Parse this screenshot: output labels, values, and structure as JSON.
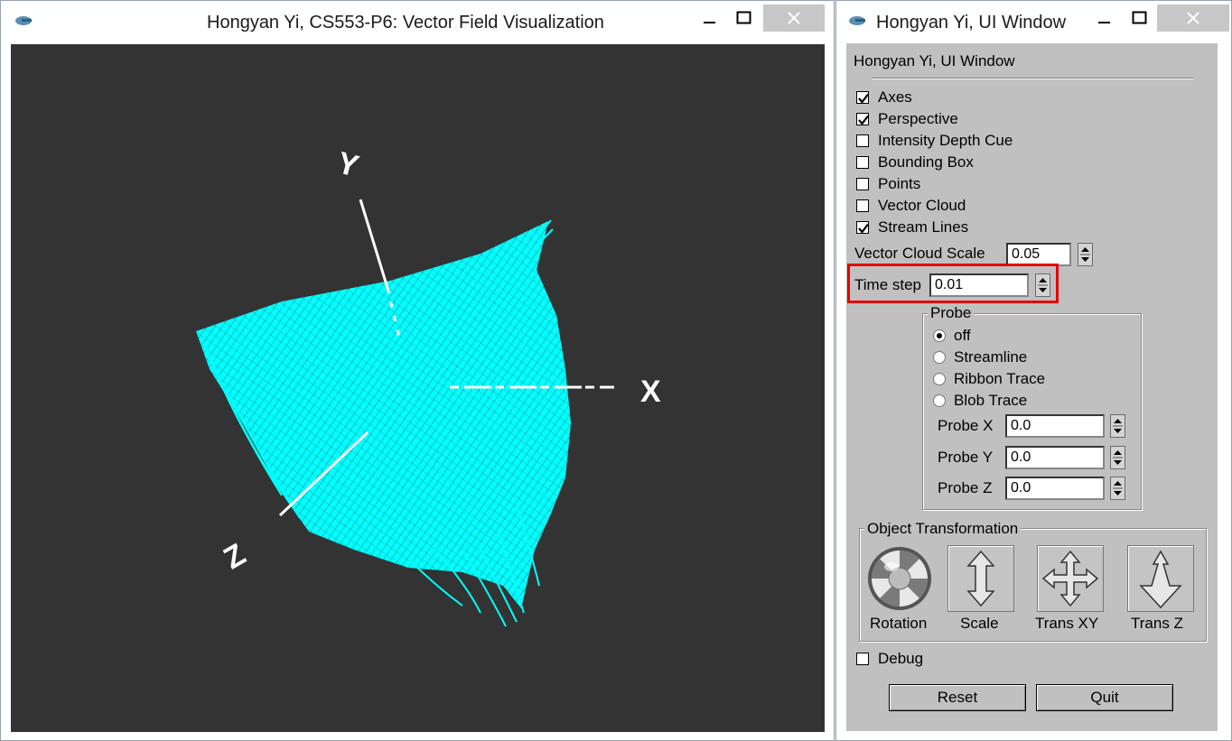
{
  "main_window": {
    "title": "Hongyan Yi, CS553-P6: Vector Field Visualization",
    "axes": {
      "x": "X",
      "y": "Y",
      "z": "Z"
    }
  },
  "ui_window": {
    "title": "Hongyan Yi, UI Window",
    "panel_heading": "Hongyan Yi, UI Window",
    "checkboxes": [
      {
        "label": "Axes",
        "checked": true
      },
      {
        "label": "Perspective",
        "checked": true
      },
      {
        "label": "Intensity Depth Cue",
        "checked": false
      },
      {
        "label": "Bounding Box",
        "checked": false
      },
      {
        "label": "Points",
        "checked": false
      },
      {
        "label": "Vector Cloud",
        "checked": false
      },
      {
        "label": "Stream Lines",
        "checked": true
      }
    ],
    "vector_cloud_scale": {
      "label": "Vector Cloud Scale",
      "value": "0.05"
    },
    "time_step": {
      "label": "Time step",
      "value": "0.01"
    },
    "probe": {
      "legend": "Probe",
      "options": [
        {
          "label": "off",
          "selected": true
        },
        {
          "label": "Streamline",
          "selected": false
        },
        {
          "label": "Ribbon Trace",
          "selected": false
        },
        {
          "label": "Blob Trace",
          "selected": false
        }
      ],
      "x": {
        "label": "Probe X",
        "value": "0.0"
      },
      "y": {
        "label": "Probe Y",
        "value": "0.0"
      },
      "z": {
        "label": "Probe Z",
        "value": "0.0"
      }
    },
    "object_transformation": {
      "legend": "Object Transformation",
      "rotation": "Rotation",
      "scale": "Scale",
      "trans_xy": "Trans XY",
      "trans_z": "Trans Z"
    },
    "debug": {
      "label": "Debug",
      "checked": false
    },
    "reset_label": "Reset",
    "quit_label": "Quit"
  },
  "colors": {
    "streamlines": "#00ffff",
    "viewport_bg": "#333333",
    "highlight": "#e50000",
    "panel_bg": "#c0c0c0"
  }
}
